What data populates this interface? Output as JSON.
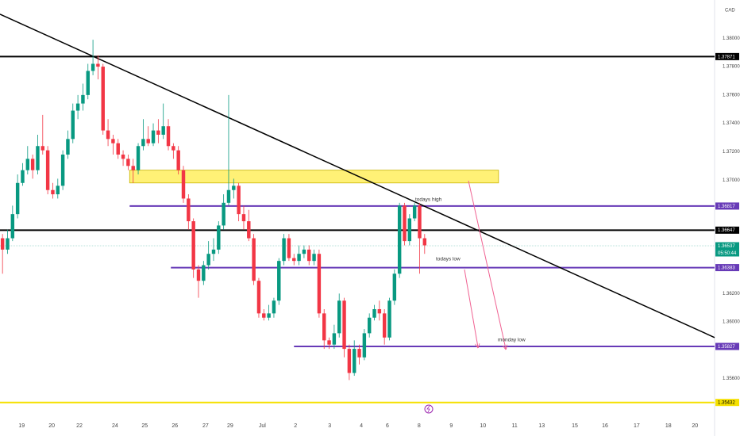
{
  "chart_data": {
    "type": "candlestick",
    "currency": "CAD",
    "up_color": "#089981",
    "down_color": "#f23645",
    "ylim": [
      1.3538,
      1.3827
    ],
    "xlim": [
      -0.5,
      141.7
    ],
    "yticks": [
      {
        "value": 1.38,
        "label": "1.38000"
      },
      {
        "value": 1.378,
        "label": "1.37800"
      },
      {
        "value": 1.376,
        "label": "1.37600"
      },
      {
        "value": 1.374,
        "label": "1.37400"
      },
      {
        "value": 1.372,
        "label": "1.37200"
      },
      {
        "value": 1.37,
        "label": "1.37000"
      },
      {
        "value": 1.362,
        "label": "1.36200"
      },
      {
        "value": 1.36,
        "label": "1.36000"
      },
      {
        "value": 1.356,
        "label": "1.35600"
      }
    ],
    "xticks": [
      {
        "value": 3.8,
        "label": "19"
      },
      {
        "value": 9.8,
        "label": "20"
      },
      {
        "value": 15.3,
        "label": "22"
      },
      {
        "value": 22.4,
        "label": "24"
      },
      {
        "value": 28.3,
        "label": "25"
      },
      {
        "value": 34.3,
        "label": "26"
      },
      {
        "value": 40.4,
        "label": "27"
      },
      {
        "value": 45.3,
        "label": "29"
      },
      {
        "value": 51.7,
        "label": "Jul"
      },
      {
        "value": 58.3,
        "label": "2"
      },
      {
        "value": 65.1,
        "label": "3"
      },
      {
        "value": 71.4,
        "label": "4"
      },
      {
        "value": 76.6,
        "label": "6"
      },
      {
        "value": 82.9,
        "label": "8"
      },
      {
        "value": 89.3,
        "label": "9"
      },
      {
        "value": 95.6,
        "label": "10"
      },
      {
        "value": 101.9,
        "label": "11"
      },
      {
        "value": 107.3,
        "label": "13"
      },
      {
        "value": 113.9,
        "label": "15"
      },
      {
        "value": 119.9,
        "label": "16"
      },
      {
        "value": 126.2,
        "label": "17"
      },
      {
        "value": 132.5,
        "label": "18"
      },
      {
        "value": 137.8,
        "label": "20"
      }
    ],
    "candles": [
      [
        1.3659,
        1.3662,
        1.3634,
        1.3651
      ],
      [
        1.3651,
        1.3665,
        1.3648,
        1.3659
      ],
      [
        1.3659,
        1.3682,
        1.3657,
        1.3676
      ],
      [
        1.3676,
        1.3704,
        1.3673,
        1.3698
      ],
      [
        1.3698,
        1.3712,
        1.3696,
        1.3707
      ],
      [
        1.3707,
        1.3724,
        1.3704,
        1.3715
      ],
      [
        1.3715,
        1.3718,
        1.3701,
        1.3707
      ],
      [
        1.3707,
        1.3732,
        1.3704,
        1.3724
      ],
      [
        1.3724,
        1.3746,
        1.3718,
        1.3721
      ],
      [
        1.3721,
        1.3724,
        1.369,
        1.3693
      ],
      [
        1.3693,
        1.3698,
        1.3687,
        1.369
      ],
      [
        1.369,
        1.3701,
        1.3687,
        1.3696
      ],
      [
        1.3696,
        1.3721,
        1.3693,
        1.3718
      ],
      [
        1.3718,
        1.3735,
        1.3715,
        1.3729
      ],
      [
        1.3729,
        1.3754,
        1.3726,
        1.3749
      ],
      [
        1.3749,
        1.376,
        1.3743,
        1.3754
      ],
      [
        1.3754,
        1.3768,
        1.3749,
        1.376
      ],
      [
        1.376,
        1.3782,
        1.3757,
        1.3777
      ],
      [
        1.3777,
        1.3799,
        1.3774,
        1.3782
      ],
      [
        1.3782,
        1.3788,
        1.3771,
        1.378
      ],
      [
        1.378,
        1.3782,
        1.3732,
        1.3735
      ],
      [
        1.3735,
        1.3743,
        1.3724,
        1.3729
      ],
      [
        1.3729,
        1.3732,
        1.3718,
        1.3726
      ],
      [
        1.3726,
        1.3729,
        1.3715,
        1.3718
      ],
      [
        1.3718,
        1.3721,
        1.371,
        1.3715
      ],
      [
        1.3715,
        1.3718,
        1.3707,
        1.371
      ],
      [
        1.371,
        1.3715,
        1.3698,
        1.3707
      ],
      [
        1.3707,
        1.3726,
        1.3704,
        1.3724
      ],
      [
        1.3724,
        1.3743,
        1.3721,
        1.3729
      ],
      [
        1.3729,
        1.3738,
        1.3724,
        1.3726
      ],
      [
        1.3726,
        1.374,
        1.3724,
        1.3735
      ],
      [
        1.3735,
        1.3743,
        1.3726,
        1.3732
      ],
      [
        1.3732,
        1.3754,
        1.3729,
        1.3738
      ],
      [
        1.3738,
        1.3743,
        1.3721,
        1.3724
      ],
      [
        1.3724,
        1.3726,
        1.3715,
        1.3721
      ],
      [
        1.3721,
        1.3724,
        1.3704,
        1.3707
      ],
      [
        1.3707,
        1.371,
        1.3684,
        1.3687
      ],
      [
        1.3687,
        1.369,
        1.3665,
        1.3671
      ],
      [
        1.3671,
        1.3673,
        1.3631,
        1.3637
      ],
      [
        1.3637,
        1.364,
        1.3617,
        1.3629
      ],
      [
        1.3629,
        1.3643,
        1.3626,
        1.364
      ],
      [
        1.364,
        1.3657,
        1.3637,
        1.3648
      ],
      [
        1.3648,
        1.3659,
        1.3643,
        1.3651
      ],
      [
        1.3651,
        1.3671,
        1.3648,
        1.3668
      ],
      [
        1.3668,
        1.369,
        1.3665,
        1.3684
      ],
      [
        1.3684,
        1.376,
        1.3682,
        1.3693
      ],
      [
        1.3693,
        1.3701,
        1.3687,
        1.3696
      ],
      [
        1.3696,
        1.3698,
        1.3671,
        1.3676
      ],
      [
        1.3676,
        1.3682,
        1.3665,
        1.3671
      ],
      [
        1.3671,
        1.3679,
        1.3657,
        1.3659
      ],
      [
        1.3659,
        1.3662,
        1.3626,
        1.3629
      ],
      [
        1.3629,
        1.3631,
        1.3603,
        1.3606
      ],
      [
        1.3606,
        1.3609,
        1.3601,
        1.3603
      ],
      [
        1.3603,
        1.3612,
        1.3601,
        1.3606
      ],
      [
        1.3606,
        1.3617,
        1.3603,
        1.3615
      ],
      [
        1.3615,
        1.3645,
        1.3612,
        1.3643
      ],
      [
        1.3643,
        1.3662,
        1.364,
        1.3659
      ],
      [
        1.3659,
        1.3662,
        1.3643,
        1.3645
      ],
      [
        1.3645,
        1.3648,
        1.364,
        1.3643
      ],
      [
        1.3643,
        1.3654,
        1.364,
        1.3648
      ],
      [
        1.3648,
        1.3654,
        1.3645,
        1.3651
      ],
      [
        1.3651,
        1.3654,
        1.364,
        1.3643
      ],
      [
        1.3643,
        1.3651,
        1.364,
        1.3648
      ],
      [
        1.3648,
        1.3651,
        1.3603,
        1.3606
      ],
      [
        1.3606,
        1.3609,
        1.3581,
        1.3587
      ],
      [
        1.3587,
        1.3589,
        1.3581,
        1.3584
      ],
      [
        1.3584,
        1.3598,
        1.3581,
        1.3592
      ],
      [
        1.3592,
        1.362,
        1.3589,
        1.3615
      ],
      [
        1.3615,
        1.3617,
        1.3575,
        1.3581
      ],
      [
        1.3581,
        1.3584,
        1.3559,
        1.3564
      ],
      [
        1.3564,
        1.3587,
        1.3562,
        1.3581
      ],
      [
        1.3581,
        1.3584,
        1.357,
        1.3575
      ],
      [
        1.3575,
        1.3595,
        1.3573,
        1.3592
      ],
      [
        1.3592,
        1.3606,
        1.3589,
        1.3603
      ],
      [
        1.3603,
        1.3612,
        1.3601,
        1.3609
      ],
      [
        1.3609,
        1.3615,
        1.3601,
        1.3606
      ],
      [
        1.3606,
        1.3609,
        1.3584,
        1.3589
      ],
      [
        1.3589,
        1.3617,
        1.3587,
        1.3615
      ],
      [
        1.3615,
        1.3637,
        1.3612,
        1.3634
      ],
      [
        1.3634,
        1.3684,
        1.3631,
        1.3682
      ],
      [
        1.3682,
        1.3684,
        1.3654,
        1.3657
      ],
      [
        1.3657,
        1.3676,
        1.3654,
        1.3673
      ],
      [
        1.3673,
        1.3684,
        1.3671,
        1.3682
      ],
      [
        1.3682,
        1.3684,
        1.3634,
        1.3659
      ],
      [
        1.3659,
        1.3662,
        1.3648,
        1.3654
      ]
    ],
    "levels": [
      {
        "value": 1.37871,
        "color": "#000000",
        "text_color": "#ffffff",
        "start": -0.5
      },
      {
        "value": 1.36817,
        "color": "#673ab7",
        "text_color": "#ffffff",
        "start": 25.3
      },
      {
        "value": 1.36647,
        "color": "#000000",
        "text_color": "#ffffff",
        "start": -0.5
      },
      {
        "value": 1.36383,
        "color": "#673ab7",
        "text_color": "#ffffff",
        "start": 33.5
      },
      {
        "value": 1.35827,
        "color": "#673ab7",
        "text_color": "#ffffff",
        "start": 58
      },
      {
        "value": 1.35432,
        "color": "#f5e000",
        "text_color": "#000000",
        "start": -0.5
      }
    ],
    "last": {
      "value": 1.36537,
      "countdown": "05:50:44",
      "color": "#089981"
    },
    "zone": {
      "x": [
        25.3,
        98.7
      ],
      "y": [
        1.3698,
        1.3707
      ],
      "color": "#fff176"
    },
    "trendline": {
      "x": [
        -0.5,
        141.7
      ],
      "y": [
        1.3817,
        1.3589
      ],
      "color": "#000000"
    },
    "annotations": [
      "todays high",
      "todays low",
      "monday low"
    ]
  }
}
